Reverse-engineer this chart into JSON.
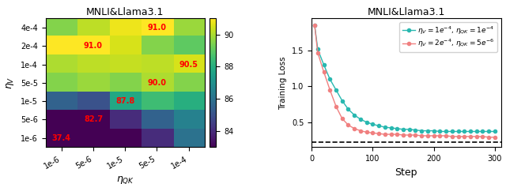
{
  "heatmap_title": "MNLI&Llama3.1",
  "line_title": "MNLI&Llama3.1",
  "eta_V_labels": [
    "4e-4",
    "2e-4",
    "1e-4",
    "5e-5",
    "1e-5",
    "5e-6",
    "1e-6"
  ],
  "eta_QK_labels": [
    "1e-6",
    "5e-6",
    "1e-5",
    "5e-5",
    "1e-4"
  ],
  "heatmap_data": [
    [
      89.5,
      90.2,
      90.8,
      91.0,
      89.8
    ],
    [
      91.0,
      91.0,
      90.5,
      89.5,
      89.0
    ],
    [
      90.0,
      90.2,
      90.3,
      90.2,
      90.5
    ],
    [
      89.5,
      89.8,
      89.5,
      90.0,
      89.5
    ],
    [
      85.5,
      85.0,
      87.8,
      88.5,
      88.0
    ],
    [
      82.7,
      82.7,
      84.0,
      85.5,
      86.5
    ],
    [
      37.4,
      40.0,
      50.0,
      84.0,
      86.0
    ]
  ],
  "annotated_cells": [
    [
      0,
      3,
      "91.0"
    ],
    [
      1,
      1,
      "91.0"
    ],
    [
      2,
      4,
      "90.5"
    ],
    [
      3,
      3,
      "90.0"
    ],
    [
      4,
      2,
      "87.8"
    ],
    [
      5,
      1,
      "82.7"
    ],
    [
      6,
      0,
      "37.4"
    ]
  ],
  "vmin": 83,
  "vmax": 91,
  "colormap": "viridis",
  "colorbar_ticks": [
    84,
    86,
    88,
    90
  ],
  "line1_color": "#29b8b0",
  "line2_color": "#f08080",
  "dashed_line_y": 0.22,
  "steps": [
    5,
    10,
    20,
    30,
    40,
    50,
    60,
    70,
    80,
    90,
    100,
    110,
    120,
    130,
    140,
    150,
    160,
    170,
    180,
    190,
    200,
    210,
    220,
    230,
    240,
    250,
    260,
    270,
    280,
    290,
    300
  ],
  "loss1": [
    1.85,
    1.52,
    1.3,
    1.1,
    0.95,
    0.8,
    0.68,
    0.6,
    0.54,
    0.5,
    0.47,
    0.45,
    0.43,
    0.42,
    0.41,
    0.4,
    0.4,
    0.39,
    0.38,
    0.38,
    0.38,
    0.37,
    0.37,
    0.37,
    0.37,
    0.37,
    0.37,
    0.37,
    0.37,
    0.37,
    0.37
  ],
  "loss2": [
    1.85,
    1.47,
    1.2,
    0.95,
    0.72,
    0.55,
    0.46,
    0.41,
    0.38,
    0.36,
    0.35,
    0.34,
    0.33,
    0.33,
    0.33,
    0.32,
    0.32,
    0.32,
    0.31,
    0.31,
    0.31,
    0.31,
    0.31,
    0.3,
    0.3,
    0.3,
    0.3,
    0.3,
    0.3,
    0.29,
    0.29
  ],
  "ylabel_line": "Training Loss",
  "xlabel_line": "Step",
  "xlim": [
    0,
    310
  ],
  "ylim": [
    0.15,
    1.95
  ],
  "annotation_fontsize": 7,
  "tick_fontsize": 7,
  "label_fontsize": 9,
  "legend_fontsize": 6.5
}
